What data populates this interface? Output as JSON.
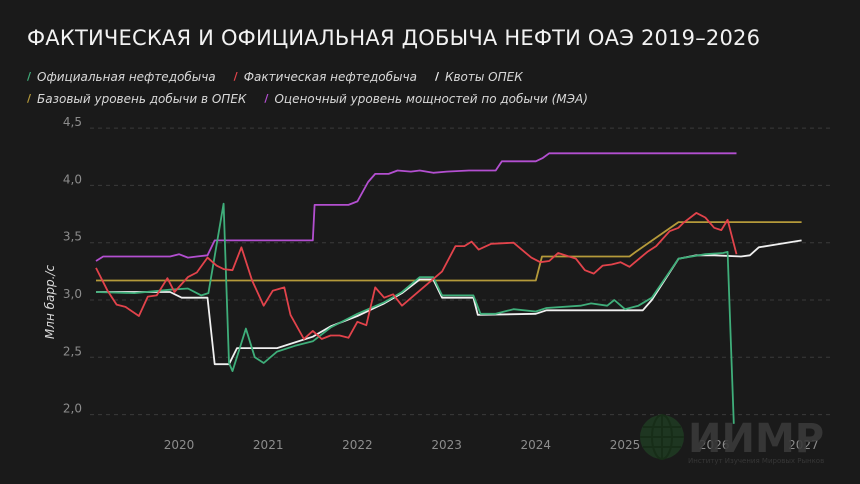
{
  "title": "ФАКТИЧЕСКАЯ И ОФИЦИАЛЬНАЯ ДОБЫЧА НЕФТИ ОАЭ 2019–2026",
  "legend": [
    {
      "label": "Официальная нефтедобыча",
      "color": "#3fae7a"
    },
    {
      "label": "Фактическая нефтедобыча",
      "color": "#e2434b"
    },
    {
      "label": "Квоты ОПЕК",
      "color": "#f0f0f0"
    },
    {
      "label": "Базовый уровень добычи в ОПЕК",
      "color": "#b59a3a"
    },
    {
      "label": "Оценочный уровень мощностей по добычи (МЭА)",
      "color": "#b34fd0"
    }
  ],
  "watermark": {
    "logo": "ИИМР",
    "subtitle": "Институт Изучения Мировых Рынков",
    "icon": "globe-icon"
  },
  "chart_data": {
    "type": "line",
    "title": "ФАКТИЧЕСКАЯ И ОФИЦИАЛЬНАЯ ДОБЫЧА НЕФТИ ОАЭ 2019–2026",
    "xlabel": "",
    "ylabel": "Млн барр./с",
    "ylim": [
      2.0,
      4.5
    ],
    "xlim": [
      2019.07,
      2026.98
    ],
    "yticks": [
      "2,0",
      "2,5",
      "3,0",
      "3,5",
      "4,0",
      "4,5"
    ],
    "ytick_values": [
      2.0,
      2.5,
      3.0,
      3.5,
      4.0,
      4.5
    ],
    "xticks": [
      "2020",
      "2021",
      "2022",
      "2023",
      "2024",
      "2025",
      "2026",
      "2027"
    ],
    "xtick_values": [
      2020,
      2021,
      2022,
      2023,
      2024,
      2025,
      2026,
      2027
    ],
    "grid": true,
    "legend_position": "top-left",
    "series": [
      {
        "name": "Оценочный уровень мощностей по добычи (МЭА)",
        "color": "#b34fd0",
        "points": [
          [
            2019.07,
            3.34
          ],
          [
            2019.15,
            3.38
          ],
          [
            2019.9,
            3.38
          ],
          [
            2020.0,
            3.4
          ],
          [
            2020.1,
            3.37
          ],
          [
            2020.2,
            3.38
          ],
          [
            2020.32,
            3.39
          ],
          [
            2020.4,
            3.52
          ],
          [
            2021.4,
            3.52
          ],
          [
            2021.5,
            3.52
          ],
          [
            2021.52,
            3.83
          ],
          [
            2021.9,
            3.83
          ],
          [
            2022.0,
            3.86
          ],
          [
            2022.12,
            4.03
          ],
          [
            2022.2,
            4.1
          ],
          [
            2022.35,
            4.1
          ],
          [
            2022.45,
            4.13
          ],
          [
            2022.6,
            4.12
          ],
          [
            2022.7,
            4.13
          ],
          [
            2022.85,
            4.11
          ],
          [
            2023.0,
            4.12
          ],
          [
            2023.25,
            4.13
          ],
          [
            2023.55,
            4.13
          ],
          [
            2023.62,
            4.21
          ],
          [
            2024.0,
            4.21
          ],
          [
            2024.08,
            4.24
          ],
          [
            2024.15,
            4.28
          ],
          [
            2025.0,
            4.28
          ],
          [
            2026.25,
            4.28
          ]
        ]
      },
      {
        "name": "Базовый уровень добычи в ОПЕК",
        "color": "#b59a3a",
        "points": [
          [
            2019.07,
            3.17
          ],
          [
            2024.0,
            3.17
          ],
          [
            2024.07,
            3.38
          ],
          [
            2025.0,
            3.38
          ],
          [
            2025.05,
            3.38
          ],
          [
            2025.12,
            3.42
          ],
          [
            2025.6,
            3.68
          ],
          [
            2026.98,
            3.68
          ]
        ]
      },
      {
        "name": "Квоты ОПЕК",
        "color": "#f0f0f0",
        "points": [
          [
            2019.07,
            3.07
          ],
          [
            2019.9,
            3.07
          ],
          [
            2020.03,
            3.02
          ],
          [
            2020.32,
            3.02
          ],
          [
            2020.4,
            2.44
          ],
          [
            2020.56,
            2.44
          ],
          [
            2020.65,
            2.58
          ],
          [
            2021.1,
            2.58
          ],
          [
            2021.3,
            2.63
          ],
          [
            2021.5,
            2.68
          ],
          [
            2021.7,
            2.77
          ],
          [
            2022.0,
            2.86
          ],
          [
            2022.3,
            2.97
          ],
          [
            2022.5,
            3.06
          ],
          [
            2022.7,
            3.18
          ],
          [
            2022.85,
            3.18
          ],
          [
            2022.95,
            3.02
          ],
          [
            2023.3,
            3.02
          ],
          [
            2023.35,
            2.87
          ],
          [
            2024.0,
            2.88
          ],
          [
            2024.12,
            2.91
          ],
          [
            2025.0,
            2.91
          ],
          [
            2025.2,
            2.91
          ],
          [
            2025.3,
            3.0
          ],
          [
            2025.6,
            3.36
          ],
          [
            2025.8,
            3.39
          ],
          [
            2026.0,
            3.39
          ],
          [
            2026.3,
            3.38
          ],
          [
            2026.4,
            3.39
          ],
          [
            2026.5,
            3.46
          ],
          [
            2026.98,
            3.52
          ]
        ]
      },
      {
        "name": "Официальная нефтедобыча",
        "color": "#3fae7a",
        "points": [
          [
            2019.07,
            3.07
          ],
          [
            2019.5,
            3.06
          ],
          [
            2019.9,
            3.09
          ],
          [
            2020.1,
            3.1
          ],
          [
            2020.25,
            3.04
          ],
          [
            2020.33,
            3.06
          ],
          [
            2020.5,
            3.84
          ],
          [
            2020.56,
            2.45
          ],
          [
            2020.6,
            2.38
          ],
          [
            2020.75,
            2.75
          ],
          [
            2020.85,
            2.5
          ],
          [
            2020.95,
            2.45
          ],
          [
            2021.1,
            2.55
          ],
          [
            2021.3,
            2.6
          ],
          [
            2021.5,
            2.64
          ],
          [
            2021.7,
            2.76
          ],
          [
            2022.0,
            2.88
          ],
          [
            2022.3,
            2.98
          ],
          [
            2022.5,
            3.07
          ],
          [
            2022.7,
            3.2
          ],
          [
            2022.85,
            3.2
          ],
          [
            2022.95,
            3.04
          ],
          [
            2023.3,
            3.04
          ],
          [
            2023.38,
            2.88
          ],
          [
            2023.55,
            2.88
          ],
          [
            2023.75,
            2.92
          ],
          [
            2024.0,
            2.9
          ],
          [
            2024.12,
            2.93
          ],
          [
            2024.5,
            2.95
          ],
          [
            2024.62,
            2.97
          ],
          [
            2024.8,
            2.95
          ],
          [
            2024.88,
            3.0
          ],
          [
            2025.0,
            2.92
          ],
          [
            2025.15,
            2.95
          ],
          [
            2025.3,
            3.02
          ],
          [
            2025.6,
            3.36
          ],
          [
            2025.9,
            3.4
          ],
          [
            2026.1,
            3.41
          ],
          [
            2026.15,
            3.42
          ],
          [
            2026.22,
            1.92
          ]
        ]
      },
      {
        "name": "Фактическая нефтедобыча",
        "color": "#e2434b",
        "points": [
          [
            2019.07,
            3.28
          ],
          [
            2019.2,
            3.08
          ],
          [
            2019.3,
            2.96
          ],
          [
            2019.4,
            2.94
          ],
          [
            2019.55,
            2.86
          ],
          [
            2019.65,
            3.03
          ],
          [
            2019.75,
            3.04
          ],
          [
            2019.87,
            3.19
          ],
          [
            2019.95,
            3.07
          ],
          [
            2020.1,
            3.2
          ],
          [
            2020.2,
            3.24
          ],
          [
            2020.32,
            3.37
          ],
          [
            2020.42,
            3.3
          ],
          [
            2020.5,
            3.27
          ],
          [
            2020.6,
            3.26
          ],
          [
            2020.7,
            3.46
          ],
          [
            2020.82,
            3.17
          ],
          [
            2020.95,
            2.95
          ],
          [
            2021.05,
            3.08
          ],
          [
            2021.18,
            3.11
          ],
          [
            2021.25,
            2.87
          ],
          [
            2021.4,
            2.66
          ],
          [
            2021.5,
            2.73
          ],
          [
            2021.6,
            2.66
          ],
          [
            2021.7,
            2.69
          ],
          [
            2021.8,
            2.69
          ],
          [
            2021.9,
            2.67
          ],
          [
            2022.0,
            2.81
          ],
          [
            2022.1,
            2.78
          ],
          [
            2022.2,
            3.11
          ],
          [
            2022.3,
            3.02
          ],
          [
            2022.4,
            3.05
          ],
          [
            2022.5,
            2.95
          ],
          [
            2022.95,
            3.25
          ],
          [
            2023.1,
            3.47
          ],
          [
            2023.2,
            3.47
          ],
          [
            2023.28,
            3.51
          ],
          [
            2023.36,
            3.44
          ],
          [
            2023.5,
            3.49
          ],
          [
            2023.75,
            3.5
          ],
          [
            2023.95,
            3.37
          ],
          [
            2024.05,
            3.33
          ],
          [
            2024.15,
            3.34
          ],
          [
            2024.25,
            3.41
          ],
          [
            2024.45,
            3.36
          ],
          [
            2024.55,
            3.26
          ],
          [
            2024.65,
            3.23
          ],
          [
            2024.75,
            3.3
          ],
          [
            2024.85,
            3.31
          ],
          [
            2024.95,
            3.33
          ],
          [
            2025.05,
            3.29
          ],
          [
            2025.25,
            3.42
          ],
          [
            2025.35,
            3.47
          ],
          [
            2025.5,
            3.6
          ],
          [
            2025.6,
            3.63
          ],
          [
            2025.65,
            3.67
          ],
          [
            2025.8,
            3.76
          ],
          [
            2025.9,
            3.72
          ],
          [
            2026.0,
            3.63
          ],
          [
            2026.08,
            3.61
          ],
          [
            2026.15,
            3.7
          ],
          [
            2026.25,
            3.4
          ]
        ]
      }
    ]
  }
}
